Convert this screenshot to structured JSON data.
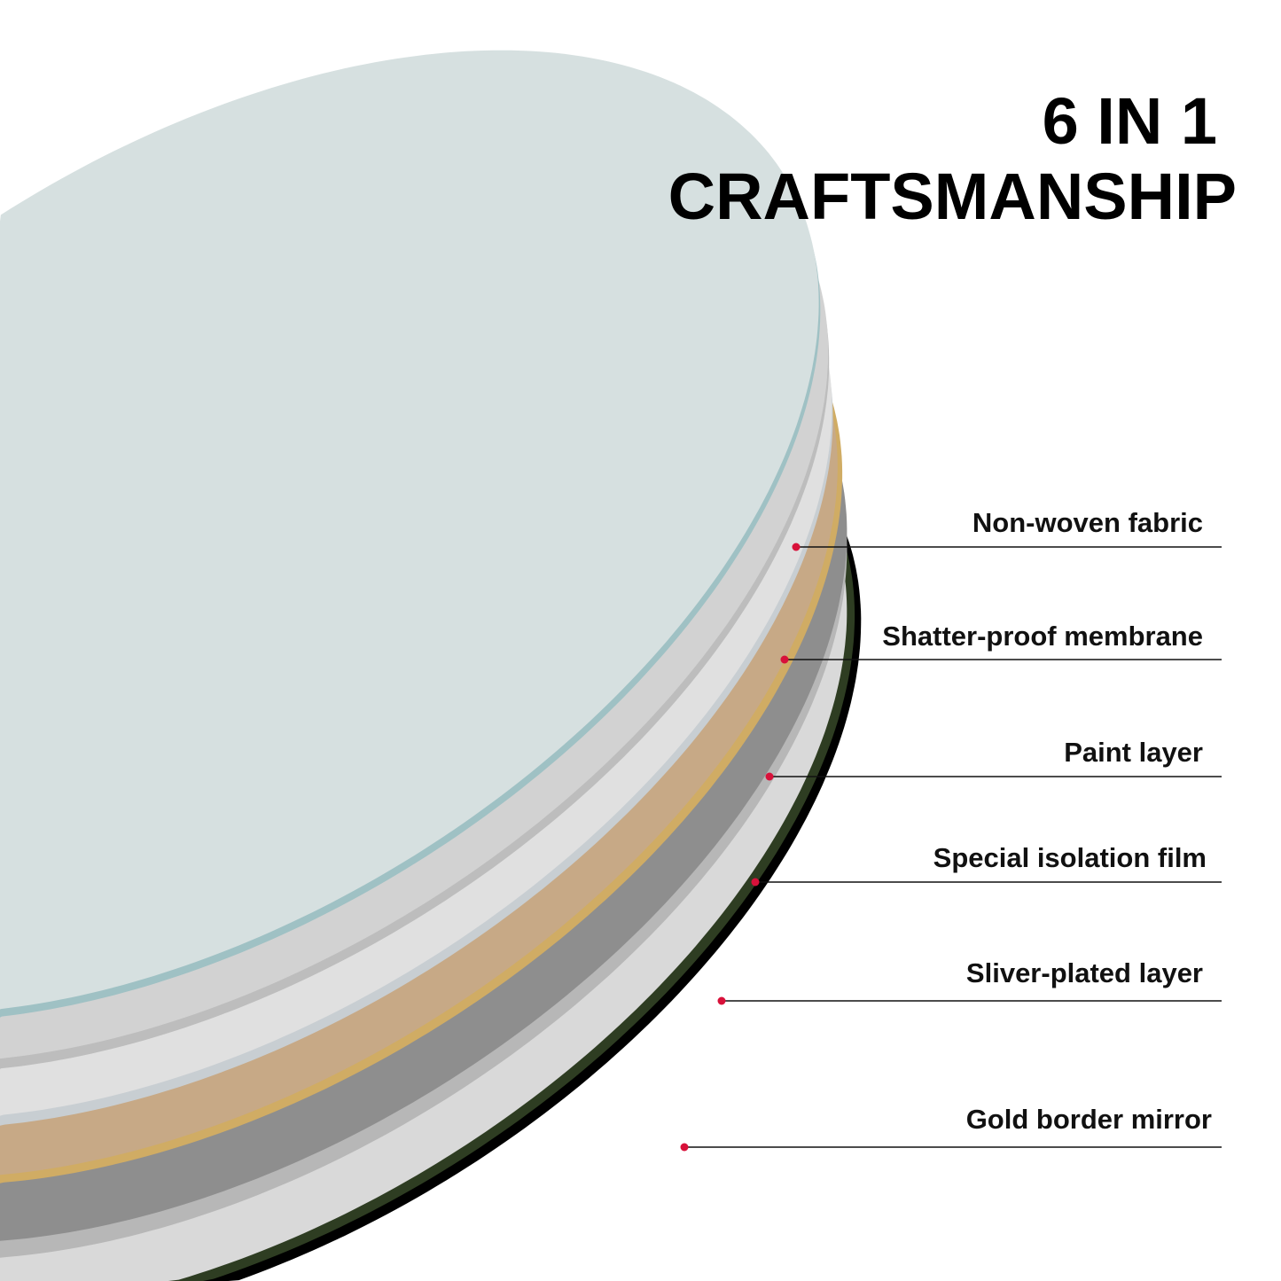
{
  "title": {
    "line1": "6 IN 1",
    "line2": "CRAFTSMANSHIP"
  },
  "layers": [
    {
      "label": "Non-woven fabric"
    },
    {
      "label": "Shatter-proof membrane"
    },
    {
      "label": "Paint layer"
    },
    {
      "label": "Special isolation film"
    },
    {
      "label": "Sliver-plated layer"
    },
    {
      "label": "Gold border mirror"
    }
  ],
  "colors": {
    "marker": "#d8113a",
    "glass": "#d6e0e0",
    "glass_edge": "#9fc1c4",
    "gold": "#d0ac64",
    "tan": "#c7a986"
  }
}
